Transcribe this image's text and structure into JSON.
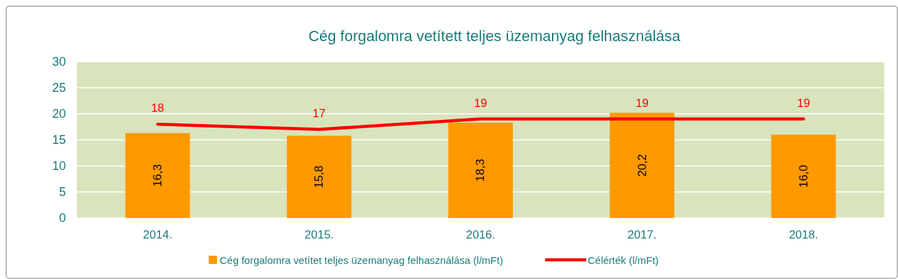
{
  "chart_data": {
    "type": "bar",
    "title": "Cég forgalomra vetített teljes üzemanyag felhasználása",
    "categories": [
      "2014.",
      "2015.",
      "2016.",
      "2017.",
      "2018."
    ],
    "series": [
      {
        "name": "Cég forgalomra vetítet teljes üzemanyag felhasználása (l/mFt)",
        "color": "#ff9900",
        "values": [
          16.3,
          15.8,
          18.3,
          20.2,
          16.0
        ],
        "value_labels": [
          "16,3",
          "15,8",
          "18,3",
          "20,2",
          "16,0"
        ]
      },
      {
        "name": "Célérték (l/mFt)",
        "type": "line",
        "color": "#ff0000",
        "values": [
          18,
          17,
          19,
          19,
          19
        ],
        "value_labels": [
          "18",
          "17",
          "19",
          "19",
          "19"
        ]
      }
    ],
    "ylim": [
      0,
      30
    ],
    "yticks": [
      0,
      5,
      10,
      15,
      20,
      25,
      30
    ],
    "grid": "y",
    "legend": "bottom",
    "marker": "none",
    "line_style": "solid"
  }
}
